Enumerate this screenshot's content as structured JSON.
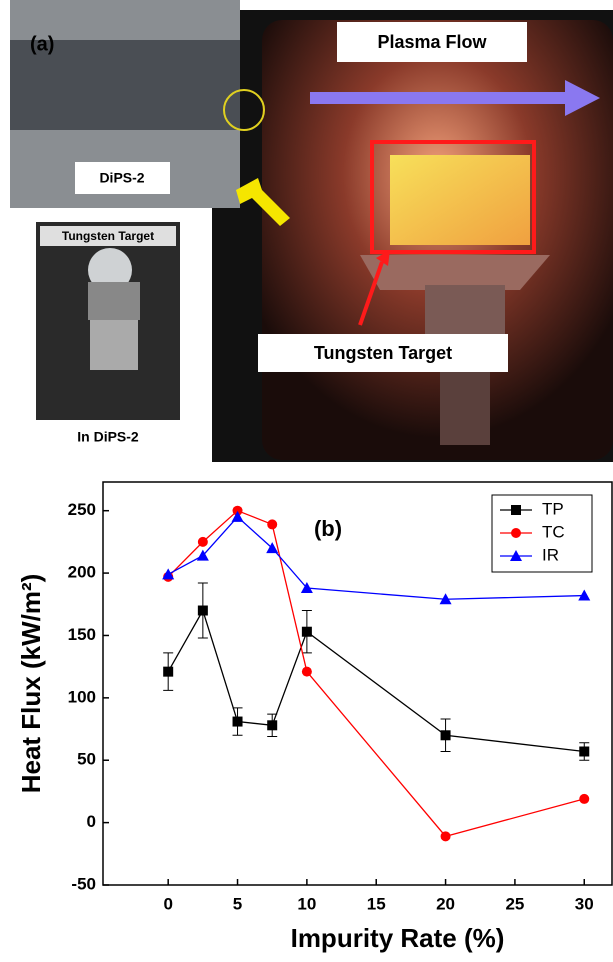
{
  "panel_a": {
    "label": "(a)",
    "plasma_flow": "Plasma Flow",
    "device": "DiPS-2",
    "inset_target": "Tungsten Target",
    "main_target": "Tungsten Target",
    "inset_caption": "In DiPS-2"
  },
  "chart_data": {
    "type": "line",
    "panel_label": "(b)",
    "x_label": "Impurity Rate (%)",
    "y_label": "Heat Flux (kW/m²)",
    "x": [
      0,
      2.5,
      5,
      7.5,
      10,
      20,
      30
    ],
    "series": [
      {
        "name": "TP",
        "color": "#000000",
        "marker": "square",
        "values": [
          121,
          170,
          81,
          78,
          153,
          70,
          57
        ],
        "errors": [
          15,
          22,
          11,
          9,
          17,
          13,
          7
        ]
      },
      {
        "name": "TC",
        "color": "#ff0000",
        "marker": "circle",
        "values": [
          197,
          225,
          250,
          239,
          121,
          -11,
          19
        ]
      },
      {
        "name": "IR",
        "color": "#0000ff",
        "marker": "triangle",
        "values": [
          199,
          214,
          245,
          220,
          188,
          179,
          182
        ]
      }
    ],
    "xlim": [
      -4.7,
      32
    ],
    "ylim": [
      -50,
      273
    ],
    "xticks": [
      0,
      5,
      10,
      15,
      20,
      25,
      30
    ],
    "yticks": [
      -50,
      0,
      50,
      100,
      150,
      200,
      250
    ],
    "legend": "upper right"
  }
}
